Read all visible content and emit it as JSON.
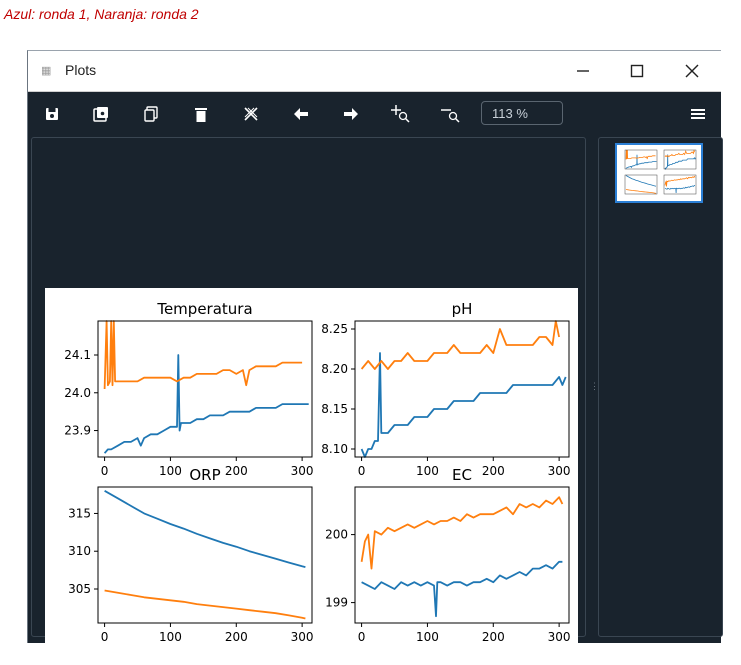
{
  "caption": "Azul: ronda 1, Naranja: ronda 2",
  "window": {
    "title": "Plots",
    "minimize_icon": "minimize-icon",
    "maximize_icon": "maximize-icon",
    "close_icon": "close-icon"
  },
  "toolbar": {
    "zoom_value": "113 %",
    "icons": [
      "save-icon",
      "save-all-icon",
      "copy-icon",
      "delete-icon",
      "delete-all-icon",
      "arrow-left-icon",
      "arrow-right-icon",
      "zoom-in-icon",
      "zoom-out-icon",
      "hamburger-menu-icon"
    ]
  },
  "colors": {
    "series_round1": "#1f77b4",
    "series_round2": "#ff7f0e",
    "dark_bg": "#19232d",
    "thumb_border": "#2b7fd5"
  },
  "chart_data": [
    {
      "type": "line",
      "title": "Temperatura",
      "xlim": [
        -10,
        315
      ],
      "ylim": [
        23.83,
        24.19
      ],
      "xticks": [
        "0",
        "100",
        "200",
        "300"
      ],
      "yticks": [
        23.9,
        24.0,
        24.1
      ],
      "ytick_labels": [
        "23.9",
        "24.0",
        "24.1"
      ],
      "series": [
        {
          "x": [
            0,
            5,
            10,
            20,
            30,
            40,
            50,
            55,
            60,
            70,
            80,
            90,
            100,
            110,
            112,
            114,
            116,
            120,
            130,
            140,
            150,
            160,
            170,
            180,
            190,
            200,
            210,
            220,
            230,
            240,
            250,
            260,
            270,
            280,
            290,
            300,
            310
          ],
          "y": [
            23.84,
            23.85,
            23.85,
            23.86,
            23.87,
            23.87,
            23.88,
            23.86,
            23.88,
            23.89,
            23.89,
            23.9,
            23.91,
            23.91,
            24.1,
            23.9,
            23.92,
            23.92,
            23.92,
            23.93,
            23.93,
            23.94,
            23.94,
            23.94,
            23.95,
            23.95,
            23.95,
            23.95,
            23.96,
            23.96,
            23.96,
            23.96,
            23.97,
            23.97,
            23.97,
            23.97,
            23.97
          ]
        },
        {
          "x": [
            0,
            3,
            5,
            8,
            10,
            12,
            14,
            16,
            18,
            20,
            30,
            40,
            50,
            60,
            70,
            80,
            90,
            100,
            110,
            120,
            130,
            140,
            150,
            160,
            170,
            180,
            190,
            200,
            210,
            215,
            220,
            230,
            240,
            250,
            260,
            270,
            280,
            290,
            300
          ],
          "y": [
            24.01,
            24.19,
            24.02,
            24.03,
            24.19,
            24.02,
            24.19,
            24.03,
            24.03,
            24.03,
            24.03,
            24.03,
            24.03,
            24.04,
            24.04,
            24.04,
            24.04,
            24.04,
            24.03,
            24.04,
            24.04,
            24.05,
            24.05,
            24.05,
            24.05,
            24.06,
            24.06,
            24.05,
            24.06,
            24.02,
            24.06,
            24.07,
            24.07,
            24.07,
            24.07,
            24.08,
            24.08,
            24.08,
            24.08
          ]
        }
      ]
    },
    {
      "type": "line",
      "title": "pH",
      "xlim": [
        -10,
        315
      ],
      "ylim": [
        8.09,
        8.26
      ],
      "xticks": [
        "0",
        "100",
        "200",
        "300"
      ],
      "yticks": [
        8.1,
        8.15,
        8.2,
        8.25
      ],
      "ytick_labels": [
        "8.10",
        "8.15",
        "8.20",
        "8.25"
      ],
      "series": [
        {
          "x": [
            0,
            5,
            10,
            15,
            20,
            25,
            28,
            30,
            32,
            40,
            50,
            60,
            70,
            80,
            90,
            100,
            110,
            120,
            130,
            140,
            150,
            160,
            170,
            180,
            190,
            200,
            210,
            220,
            230,
            240,
            250,
            260,
            270,
            280,
            290,
            300,
            305,
            310
          ],
          "y": [
            8.1,
            8.09,
            8.1,
            8.1,
            8.11,
            8.11,
            8.22,
            8.12,
            8.12,
            8.12,
            8.13,
            8.13,
            8.13,
            8.14,
            8.14,
            8.14,
            8.15,
            8.15,
            8.15,
            8.16,
            8.16,
            8.16,
            8.16,
            8.17,
            8.17,
            8.17,
            8.17,
            8.17,
            8.18,
            8.18,
            8.18,
            8.18,
            8.18,
            8.18,
            8.18,
            8.19,
            8.18,
            8.19
          ]
        },
        {
          "x": [
            0,
            10,
            20,
            30,
            40,
            50,
            60,
            70,
            80,
            90,
            100,
            110,
            120,
            130,
            140,
            150,
            160,
            170,
            180,
            190,
            200,
            210,
            220,
            230,
            240,
            250,
            260,
            270,
            280,
            290,
            295,
            300
          ],
          "y": [
            8.2,
            8.21,
            8.2,
            8.21,
            8.2,
            8.21,
            8.21,
            8.22,
            8.21,
            8.21,
            8.21,
            8.22,
            8.22,
            8.22,
            8.23,
            8.22,
            8.22,
            8.22,
            8.22,
            8.23,
            8.22,
            8.25,
            8.23,
            8.23,
            8.23,
            8.23,
            8.23,
            8.24,
            8.24,
            8.23,
            8.26,
            8.24
          ]
        }
      ]
    },
    {
      "type": "line",
      "title": "ORP",
      "xlim": [
        -10,
        315
      ],
      "ylim": [
        300.5,
        318.5
      ],
      "xticks": [
        "0",
        "100",
        "200",
        "300"
      ],
      "yticks": [
        305,
        310,
        315
      ],
      "ytick_labels": [
        "305",
        "310",
        "315"
      ],
      "series": [
        {
          "x": [
            0,
            20,
            40,
            60,
            80,
            100,
            120,
            140,
            160,
            180,
            200,
            220,
            240,
            260,
            280,
            300,
            305
          ],
          "y": [
            318,
            317,
            316,
            315,
            314.3,
            313.6,
            313,
            312.3,
            311.7,
            311.1,
            310.6,
            310,
            309.5,
            309,
            308.5,
            308,
            307.9
          ]
        },
        {
          "x": [
            0,
            20,
            40,
            60,
            80,
            100,
            120,
            140,
            160,
            180,
            200,
            220,
            240,
            260,
            280,
            300,
            305
          ],
          "y": [
            304.8,
            304.5,
            304.2,
            303.9,
            303.7,
            303.5,
            303.3,
            303,
            302.8,
            302.6,
            302.4,
            302.2,
            302,
            301.8,
            301.5,
            301.2,
            301.1
          ]
        }
      ]
    },
    {
      "type": "line",
      "title": "EC",
      "xlim": [
        -10,
        315
      ],
      "ylim": [
        198.7,
        200.7
      ],
      "xticks": [
        "0",
        "100",
        "200",
        "300"
      ],
      "yticks": [
        199,
        200
      ],
      "ytick_labels": [
        "199",
        "200"
      ],
      "series": [
        {
          "x": [
            0,
            10,
            20,
            30,
            40,
            50,
            60,
            70,
            80,
            90,
            100,
            110,
            113,
            115,
            120,
            130,
            140,
            150,
            160,
            170,
            180,
            190,
            200,
            210,
            220,
            230,
            240,
            250,
            260,
            270,
            280,
            290,
            300,
            305
          ],
          "y": [
            199.3,
            199.25,
            199.2,
            199.3,
            199.25,
            199.2,
            199.3,
            199.25,
            199.3,
            199.25,
            199.3,
            199.25,
            198.8,
            199.3,
            199.3,
            199.25,
            199.3,
            199.3,
            199.25,
            199.3,
            199.3,
            199.35,
            199.3,
            199.4,
            199.35,
            199.4,
            199.45,
            199.4,
            199.5,
            199.5,
            199.55,
            199.5,
            199.6,
            199.6
          ]
        },
        {
          "x": [
            0,
            5,
            10,
            15,
            20,
            30,
            40,
            50,
            60,
            70,
            80,
            90,
            100,
            110,
            120,
            130,
            140,
            150,
            160,
            170,
            180,
            190,
            200,
            210,
            220,
            230,
            240,
            250,
            260,
            270,
            280,
            290,
            300,
            305
          ],
          "y": [
            199.6,
            199.9,
            200.0,
            199.5,
            200.05,
            200.0,
            200.1,
            200.05,
            200.1,
            200.15,
            200.1,
            200.15,
            200.2,
            200.15,
            200.2,
            200.2,
            200.25,
            200.2,
            200.3,
            200.25,
            200.3,
            200.3,
            200.3,
            200.35,
            200.4,
            200.3,
            200.45,
            200.4,
            200.45,
            200.4,
            200.5,
            200.45,
            200.55,
            200.45
          ]
        }
      ]
    }
  ]
}
